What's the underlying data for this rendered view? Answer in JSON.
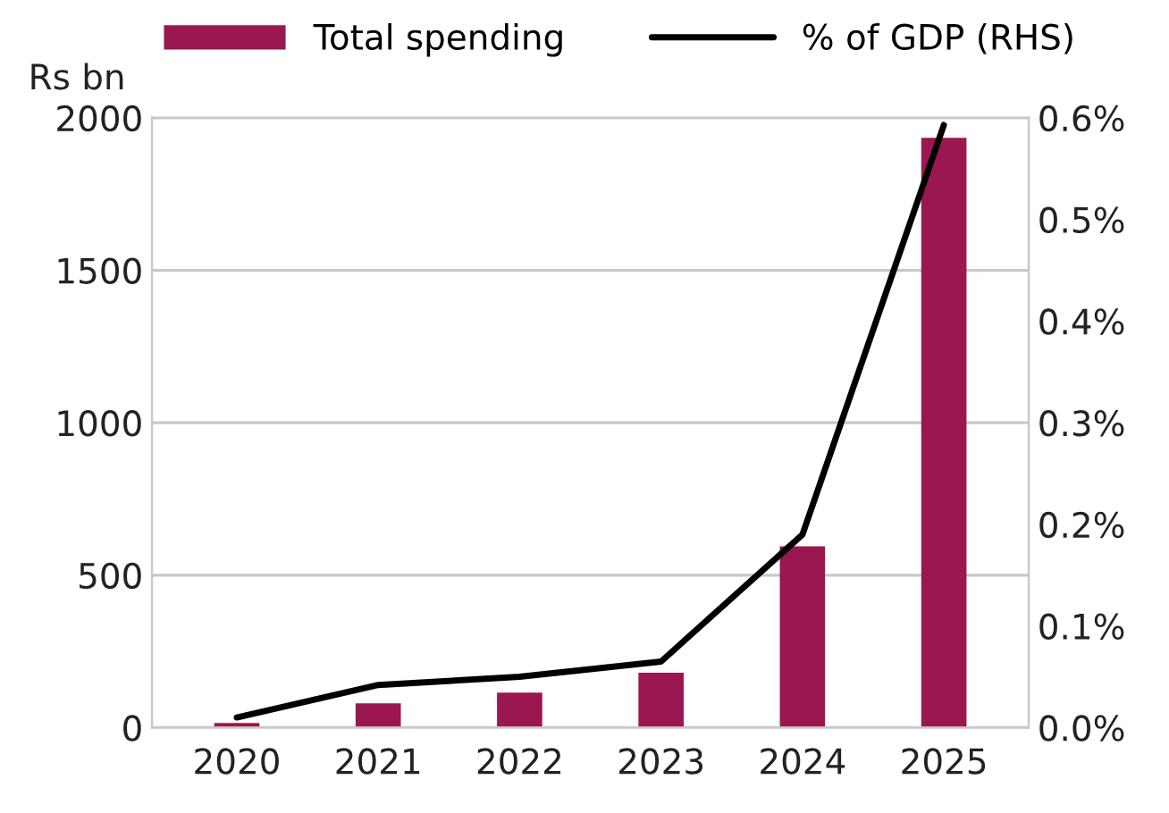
{
  "chart_data": {
    "type": "bar",
    "ylabel": "Rs bn",
    "categories": [
      "2020",
      "2021",
      "2022",
      "2023",
      "2024",
      "2025"
    ],
    "series": [
      {
        "name": "Total spending",
        "color": "#9b1750",
        "values": [
          15,
          80,
          115,
          180,
          595,
          1935
        ]
      },
      {
        "name": "% of GDP (RHS)",
        "type": "line",
        "axis": "y2",
        "color": "#000000",
        "values": [
          0.01,
          0.042,
          0.05,
          0.065,
          0.19,
          0.593
        ]
      }
    ],
    "ylim": [
      0,
      2000
    ],
    "yticks": [
      0,
      500,
      1000,
      1500,
      2000
    ],
    "y2lim": [
      0,
      0.6
    ],
    "y2ticks": [
      {
        "value": 0,
        "label": "0.0%"
      },
      {
        "value": 0.1,
        "label": "0.1%"
      },
      {
        "value": 0.2,
        "label": "0.2%"
      },
      {
        "value": 0.3,
        "label": "0.3%"
      },
      {
        "value": 0.4,
        "label": "0.4%"
      },
      {
        "value": 0.5,
        "label": "0.5%"
      },
      {
        "value": 0.6,
        "label": "0.6%"
      }
    ],
    "grid": "y",
    "legend": "top",
    "marker": "none",
    "line_style": "solid"
  }
}
